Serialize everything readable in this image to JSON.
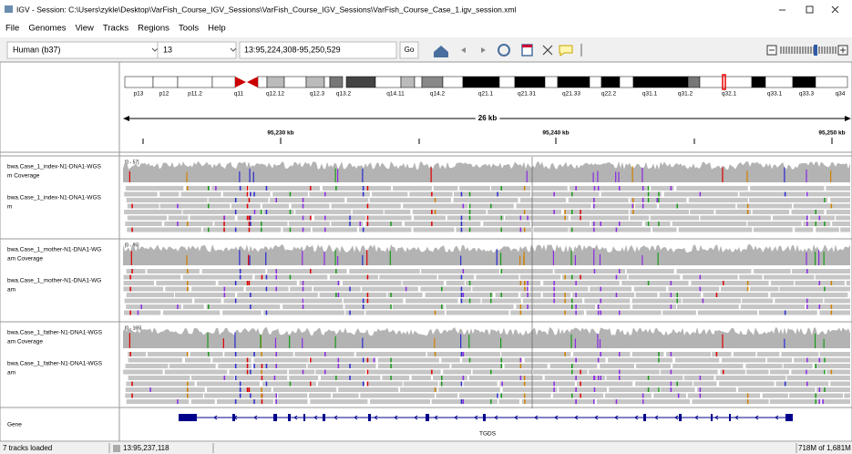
{
  "window": {
    "title": "IGV - Session: C:\\Users\\zykle\\Desktop\\VarFish_Course_IGV_Sessions\\VarFish_Course_IGV_Sessions\\VarFish_Course_Case_1.igv_session.xml"
  },
  "menu": [
    "File",
    "Genomes",
    "View",
    "Tracks",
    "Regions",
    "Tools",
    "Help"
  ],
  "toolbar": {
    "genome": "Human (b37)",
    "chromosome": "13",
    "locus": "13:95,224,308-95,250,529",
    "go": "Go"
  },
  "ideogram": {
    "bands": [
      "p13",
      "p12",
      "p11.2",
      "q11",
      "q12.12",
      "q12.3",
      "q13.2",
      "q14.11",
      "q14.2",
      "q21.1",
      "q21.31",
      "q21.33",
      "q22.2",
      "q31.1",
      "q31.2",
      "q32.1",
      "q33.1",
      "q33.3",
      "q34"
    ]
  },
  "ruler": {
    "span": "26 kb",
    "ticks": [
      "95,230 kb",
      "95,240 kb",
      "95,250 kb"
    ]
  },
  "tracks": [
    {
      "coverage_name": [
        "bwa.Case_1_index-N1-DNA1-WGS",
        "m Coverage"
      ],
      "range": "[0 - 57]",
      "reads_name": [
        "bwa.Case_1_index-N1-DNA1-WGS",
        "m"
      ]
    },
    {
      "coverage_name": [
        "bwa.Case_1_mother-N1-DNA1-WG",
        "am Coverage"
      ],
      "range": "[0 - 85]",
      "reads_name": [
        "bwa.Case_1_mother-N1-DNA1-WG",
        "am"
      ]
    },
    {
      "coverage_name": [
        "bwa.Case_1_father-N1-DNA1-WGS",
        "am Coverage"
      ],
      "range": "[0 - 165]",
      "reads_name": [
        "bwa.Case_1_father-N1-DNA1-WGS",
        "am"
      ]
    }
  ],
  "gene_track": {
    "name": "Gene",
    "gene": "TGDS"
  },
  "status": {
    "message": "7 tracks loaded",
    "position": "13:95,237,118",
    "memory": "718M of 1,681M"
  }
}
